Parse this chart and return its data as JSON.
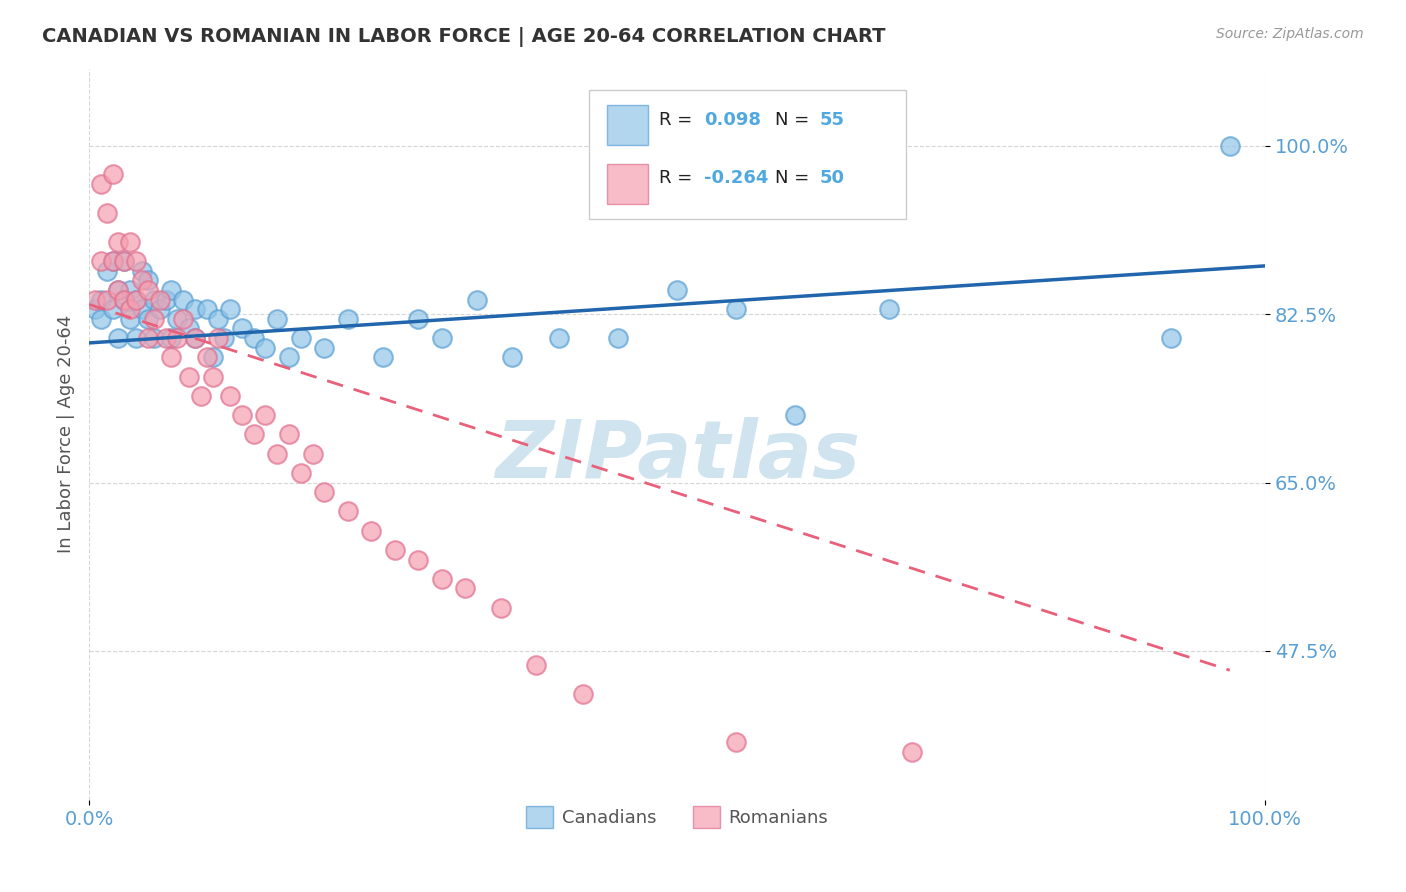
{
  "title": "CANADIAN VS ROMANIAN IN LABOR FORCE | AGE 20-64 CORRELATION CHART",
  "source_text": "Source: ZipAtlas.com",
  "ylabel": "In Labor Force | Age 20-64",
  "xlim": [
    0.0,
    1.0
  ],
  "ylim": [
    0.32,
    1.08
  ],
  "yticks": [
    0.475,
    0.65,
    0.825,
    1.0
  ],
  "ytick_labels": [
    "47.5%",
    "65.0%",
    "82.5%",
    "100.0%"
  ],
  "xtick_labels": [
    "0.0%",
    "100.0%"
  ],
  "xticks": [
    0.0,
    1.0
  ],
  "r_canadian": 0.098,
  "n_canadian": 55,
  "r_romanian": -0.264,
  "n_romanian": 50,
  "canadian_color": "#92c5e8",
  "romanian_color": "#f4a0b0",
  "canadian_trend_color": "#2166ac",
  "romanian_trend_color": "#e8607a",
  "watermark": "ZIPatlas",
  "watermark_color": "#d0e4f0",
  "background_color": "#ffffff",
  "title_color": "#333333",
  "axis_label_color": "#5a9fd4",
  "legend_r_color": "#4fa8e0",
  "canadians_x": [
    0.005,
    0.01,
    0.01,
    0.015,
    0.02,
    0.02,
    0.025,
    0.025,
    0.03,
    0.03,
    0.035,
    0.035,
    0.04,
    0.04,
    0.045,
    0.045,
    0.05,
    0.05,
    0.055,
    0.055,
    0.06,
    0.065,
    0.07,
    0.07,
    0.075,
    0.08,
    0.085,
    0.09,
    0.09,
    0.1,
    0.105,
    0.11,
    0.115,
    0.12,
    0.13,
    0.14,
    0.15,
    0.16,
    0.17,
    0.18,
    0.2,
    0.22,
    0.25,
    0.28,
    0.3,
    0.33,
    0.36,
    0.4,
    0.45,
    0.5,
    0.55,
    0.6,
    0.68,
    0.92,
    0.97
  ],
  "canadians_y": [
    0.83,
    0.84,
    0.82,
    0.87,
    0.88,
    0.83,
    0.85,
    0.8,
    0.84,
    0.88,
    0.82,
    0.85,
    0.84,
    0.8,
    0.83,
    0.87,
    0.82,
    0.86,
    0.84,
    0.8,
    0.83,
    0.84,
    0.8,
    0.85,
    0.82,
    0.84,
    0.81,
    0.83,
    0.8,
    0.83,
    0.78,
    0.82,
    0.8,
    0.83,
    0.81,
    0.8,
    0.79,
    0.82,
    0.78,
    0.8,
    0.79,
    0.82,
    0.78,
    0.82,
    0.8,
    0.84,
    0.78,
    0.8,
    0.8,
    0.85,
    0.83,
    0.72,
    0.83,
    0.8,
    1.0
  ],
  "romanians_x": [
    0.005,
    0.01,
    0.01,
    0.015,
    0.015,
    0.02,
    0.02,
    0.025,
    0.025,
    0.03,
    0.03,
    0.035,
    0.035,
    0.04,
    0.04,
    0.045,
    0.05,
    0.05,
    0.055,
    0.06,
    0.065,
    0.07,
    0.075,
    0.08,
    0.085,
    0.09,
    0.095,
    0.1,
    0.105,
    0.11,
    0.12,
    0.13,
    0.14,
    0.15,
    0.16,
    0.17,
    0.18,
    0.19,
    0.2,
    0.22,
    0.24,
    0.26,
    0.28,
    0.3,
    0.32,
    0.35,
    0.38,
    0.42,
    0.55,
    0.7
  ],
  "romanians_y": [
    0.84,
    0.96,
    0.88,
    0.93,
    0.84,
    0.97,
    0.88,
    0.9,
    0.85,
    0.88,
    0.84,
    0.9,
    0.83,
    0.88,
    0.84,
    0.86,
    0.85,
    0.8,
    0.82,
    0.84,
    0.8,
    0.78,
    0.8,
    0.82,
    0.76,
    0.8,
    0.74,
    0.78,
    0.76,
    0.8,
    0.74,
    0.72,
    0.7,
    0.72,
    0.68,
    0.7,
    0.66,
    0.68,
    0.64,
    0.62,
    0.6,
    0.58,
    0.57,
    0.55,
    0.54,
    0.52,
    0.46,
    0.43,
    0.38,
    0.37
  ],
  "can_trend_x0": 0.0,
  "can_trend_x1": 1.0,
  "can_trend_y0": 0.795,
  "can_trend_y1": 0.875,
  "rom_trend_x0": 0.0,
  "rom_trend_x1": 0.97,
  "rom_trend_y0": 0.835,
  "rom_trend_y1": 0.455
}
